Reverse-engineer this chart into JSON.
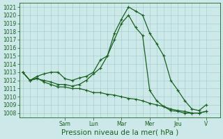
{
  "background_color": "#cce8e8",
  "grid_color": "#a8d0d0",
  "line_color": "#1a6020",
  "ylabel": "Pression niveau de la mer( hPa )",
  "ylim": [
    1007.5,
    1021.5
  ],
  "yticks": [
    1008,
    1009,
    1010,
    1011,
    1012,
    1013,
    1014,
    1015,
    1016,
    1017,
    1018,
    1019,
    1020,
    1021
  ],
  "day_labels": [
    "Sam",
    "Lun",
    "Mar",
    "Mer",
    "Jeu",
    "V"
  ],
  "day_positions": [
    24,
    40,
    56,
    72,
    88,
    104
  ],
  "line1_x": [
    0,
    4,
    8,
    12,
    16,
    20,
    24,
    28,
    32,
    36,
    40,
    44,
    48,
    52,
    56,
    60,
    64,
    68,
    72,
    76,
    80,
    84,
    88,
    92,
    96,
    100,
    104
  ],
  "line1_y": [
    1013.0,
    1012.0,
    1012.5,
    1012.8,
    1013.0,
    1013.0,
    1012.2,
    1012.0,
    1012.3,
    1012.5,
    1013.0,
    1014.5,
    1015.0,
    1017.8,
    1019.5,
    1021.0,
    1020.5,
    1020.0,
    1017.8,
    1016.5,
    1015.0,
    1012.0,
    1010.8,
    1009.5,
    1008.5,
    1008.3,
    1009.0
  ],
  "line2_x": [
    0,
    4,
    8,
    12,
    16,
    20,
    24,
    28,
    32,
    36,
    40,
    44,
    48,
    52,
    56,
    60,
    64,
    68,
    72,
    76,
    80,
    84,
    88,
    92,
    96,
    100,
    104
  ],
  "line2_y": [
    1013.0,
    1012.0,
    1012.2,
    1012.0,
    1011.8,
    1011.5,
    1011.5,
    1011.3,
    1011.5,
    1012.0,
    1012.8,
    1013.5,
    1015.0,
    1017.0,
    1019.0,
    1020.0,
    1018.5,
    1017.5,
    1010.8,
    1009.5,
    1008.8,
    1008.3,
    1008.2,
    1008.0,
    1008.0,
    1008.0,
    1008.2
  ],
  "line3_x": [
    0,
    4,
    8,
    12,
    16,
    20,
    24,
    28,
    32,
    36,
    40,
    44,
    48,
    52,
    56,
    60,
    64,
    68,
    72,
    76,
    80,
    84,
    88,
    92,
    96,
    100,
    104
  ],
  "line3_y": [
    1013.0,
    1012.0,
    1012.3,
    1011.8,
    1011.5,
    1011.2,
    1011.2,
    1011.0,
    1011.0,
    1010.8,
    1010.5,
    1010.5,
    1010.3,
    1010.2,
    1010.0,
    1009.8,
    1009.7,
    1009.5,
    1009.2,
    1009.0,
    1008.8,
    1008.5,
    1008.3,
    1008.2,
    1008.0,
    1008.0,
    1008.2
  ],
  "xlim": [
    -2,
    112
  ],
  "marker": "+",
  "markersize": 3.5,
  "markeredgewidth": 0.8,
  "linewidth": 0.9,
  "fontsize_ticks": 5.5,
  "fontsize_label": 7.5
}
